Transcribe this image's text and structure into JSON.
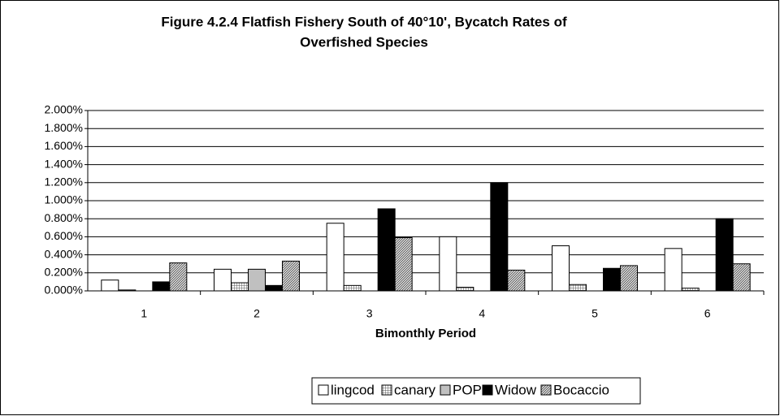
{
  "chart_data": {
    "type": "bar",
    "title": [
      "Figure 4.2.4  Flatfish Fishery South of 40°10', Bycatch Rates of",
      "Overfished Species"
    ],
    "x_label": "Bimonthly Period",
    "categories": [
      "1",
      "2",
      "3",
      "4",
      "5",
      "6"
    ],
    "series": [
      {
        "name": "lingcod",
        "color": "#ffffff",
        "values": [
          0.12,
          0.24,
          0.75,
          0.6,
          0.5,
          0.47
        ]
      },
      {
        "name": "canary",
        "color": "#808080",
        "values": [
          0.01,
          0.09,
          0.06,
          0.04,
          0.07,
          0.03
        ]
      },
      {
        "name": "POP",
        "color": "#c0c0c0",
        "values": [
          0,
          0.24,
          0,
          0,
          0,
          0
        ]
      },
      {
        "name": "Widow",
        "color": "#000000",
        "values": [
          0.1,
          0.06,
          0.91,
          1.2,
          0.25,
          0.8
        ]
      },
      {
        "name": "Bocaccio",
        "color": "#707070",
        "values": [
          0.31,
          0.33,
          0.59,
          0.23,
          0.28,
          0.3
        ]
      }
    ],
    "ylim": [
      0,
      2
    ],
    "yticks": [
      {
        "value": 0,
        "label": "0.000%"
      },
      {
        "value": 0.2,
        "label": "0.200%"
      },
      {
        "value": 0.4,
        "label": "0.400%"
      },
      {
        "value": 0.6,
        "label": "0.600%"
      },
      {
        "value": 0.8,
        "label": "0.800%"
      },
      {
        "value": 1.0,
        "label": "1.000%"
      },
      {
        "value": 1.2,
        "label": "1.200%"
      },
      {
        "value": 1.4,
        "label": "1.400%"
      },
      {
        "value": 1.6,
        "label": "1.600%"
      },
      {
        "value": 1.8,
        "label": "1.800%"
      },
      {
        "value": 2.0,
        "label": "2.000%"
      }
    ],
    "grid": true,
    "legend": "bottom"
  }
}
